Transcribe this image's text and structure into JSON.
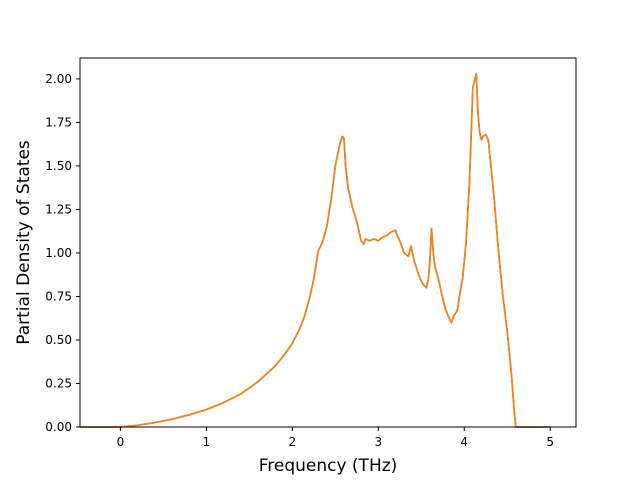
{
  "chart_data": {
    "type": "line",
    "title": "",
    "xlabel": "Frequency (THz)",
    "ylabel": "Partial Density of States",
    "xlim": [
      -0.47,
      5.3
    ],
    "ylim": [
      0,
      2.12
    ],
    "xticks": [
      0,
      1,
      2,
      3,
      4,
      5
    ],
    "xtick_labels": [
      "0",
      "1",
      "2",
      "3",
      "4",
      "5"
    ],
    "yticks": [
      0,
      0.25,
      0.5,
      0.75,
      1.0,
      1.25,
      1.5,
      1.75,
      2.0
    ],
    "ytick_labels": [
      "0.00",
      "0.25",
      "0.50",
      "0.75",
      "1.00",
      "1.25",
      "1.50",
      "1.75",
      "2.00"
    ],
    "grid": false,
    "legend": "none",
    "colors": {
      "front_series": "#ff7f0e",
      "back_series": "#1f77b4"
    },
    "series": [
      {
        "color": "#1f77b4",
        "x": [
          -0.47,
          -0.2,
          0,
          0.2,
          0.4,
          0.6,
          0.8,
          1.0,
          1.2,
          1.4,
          1.6,
          1.8,
          1.9,
          2.0,
          2.1,
          2.15,
          2.2,
          2.25,
          2.3,
          2.35,
          2.4,
          2.45,
          2.5,
          2.55,
          2.58,
          2.6,
          2.62,
          2.65,
          2.7,
          2.75,
          2.8,
          2.83,
          2.85,
          2.9,
          2.95,
          3.0,
          3.05,
          3.1,
          3.15,
          3.2,
          3.22,
          3.25,
          3.3,
          3.35,
          3.38,
          3.42,
          3.48,
          3.52,
          3.56,
          3.58,
          3.6,
          3.62,
          3.64,
          3.66,
          3.7,
          3.74,
          3.78,
          3.82,
          3.85,
          3.88,
          3.92,
          3.96,
          3.98,
          4.02,
          4.06,
          4.1,
          4.14,
          4.16,
          4.18,
          4.2,
          4.22,
          4.25,
          4.28,
          4.3,
          4.35,
          4.4,
          4.45,
          4.5,
          4.55,
          4.58,
          4.6,
          4.8,
          5.0
        ],
        "y": [
          0,
          0,
          0,
          0.01,
          0.025,
          0.045,
          0.07,
          0.1,
          0.14,
          0.19,
          0.26,
          0.35,
          0.41,
          0.48,
          0.58,
          0.65,
          0.74,
          0.85,
          1.01,
          1.06,
          1.15,
          1.3,
          1.5,
          1.62,
          1.67,
          1.66,
          1.5,
          1.37,
          1.26,
          1.18,
          1.07,
          1.05,
          1.08,
          1.07,
          1.08,
          1.07,
          1.09,
          1.1,
          1.12,
          1.13,
          1.1,
          1.07,
          1.0,
          0.98,
          1.04,
          0.95,
          0.86,
          0.82,
          0.8,
          0.84,
          0.95,
          1.14,
          1.0,
          0.92,
          0.85,
          0.76,
          0.68,
          0.63,
          0.6,
          0.64,
          0.67,
          0.8,
          0.85,
          1.05,
          1.4,
          1.95,
          2.03,
          1.8,
          1.69,
          1.65,
          1.67,
          1.68,
          1.65,
          1.55,
          1.3,
          1.0,
          0.75,
          0.55,
          0.3,
          0.1,
          0,
          0,
          0
        ]
      },
      {
        "color": "#ff7f0e",
        "x": [
          -0.47,
          -0.2,
          0,
          0.2,
          0.4,
          0.6,
          0.8,
          1.0,
          1.2,
          1.4,
          1.6,
          1.8,
          1.9,
          2.0,
          2.1,
          2.15,
          2.2,
          2.25,
          2.3,
          2.35,
          2.4,
          2.45,
          2.5,
          2.55,
          2.58,
          2.6,
          2.62,
          2.65,
          2.7,
          2.75,
          2.8,
          2.83,
          2.85,
          2.9,
          2.95,
          3.0,
          3.05,
          3.1,
          3.15,
          3.2,
          3.22,
          3.25,
          3.3,
          3.35,
          3.38,
          3.42,
          3.48,
          3.52,
          3.56,
          3.58,
          3.6,
          3.62,
          3.64,
          3.66,
          3.7,
          3.74,
          3.78,
          3.82,
          3.85,
          3.88,
          3.92,
          3.96,
          3.98,
          4.02,
          4.06,
          4.1,
          4.14,
          4.16,
          4.18,
          4.2,
          4.22,
          4.25,
          4.28,
          4.3,
          4.35,
          4.4,
          4.45,
          4.5,
          4.55,
          4.58,
          4.6,
          4.8,
          5.0
        ],
        "y": [
          0,
          0,
          0,
          0.01,
          0.025,
          0.045,
          0.07,
          0.1,
          0.14,
          0.19,
          0.26,
          0.35,
          0.41,
          0.48,
          0.58,
          0.65,
          0.74,
          0.85,
          1.01,
          1.06,
          1.15,
          1.3,
          1.5,
          1.62,
          1.67,
          1.66,
          1.5,
          1.37,
          1.26,
          1.18,
          1.07,
          1.05,
          1.08,
          1.07,
          1.08,
          1.07,
          1.09,
          1.1,
          1.12,
          1.13,
          1.1,
          1.07,
          1.0,
          0.98,
          1.04,
          0.95,
          0.86,
          0.82,
          0.8,
          0.84,
          0.95,
          1.14,
          1.0,
          0.92,
          0.85,
          0.76,
          0.68,
          0.63,
          0.6,
          0.64,
          0.67,
          0.8,
          0.85,
          1.05,
          1.4,
          1.95,
          2.03,
          1.8,
          1.69,
          1.65,
          1.67,
          1.68,
          1.65,
          1.55,
          1.3,
          1.0,
          0.75,
          0.55,
          0.3,
          0.1,
          0,
          0,
          0
        ]
      }
    ]
  }
}
